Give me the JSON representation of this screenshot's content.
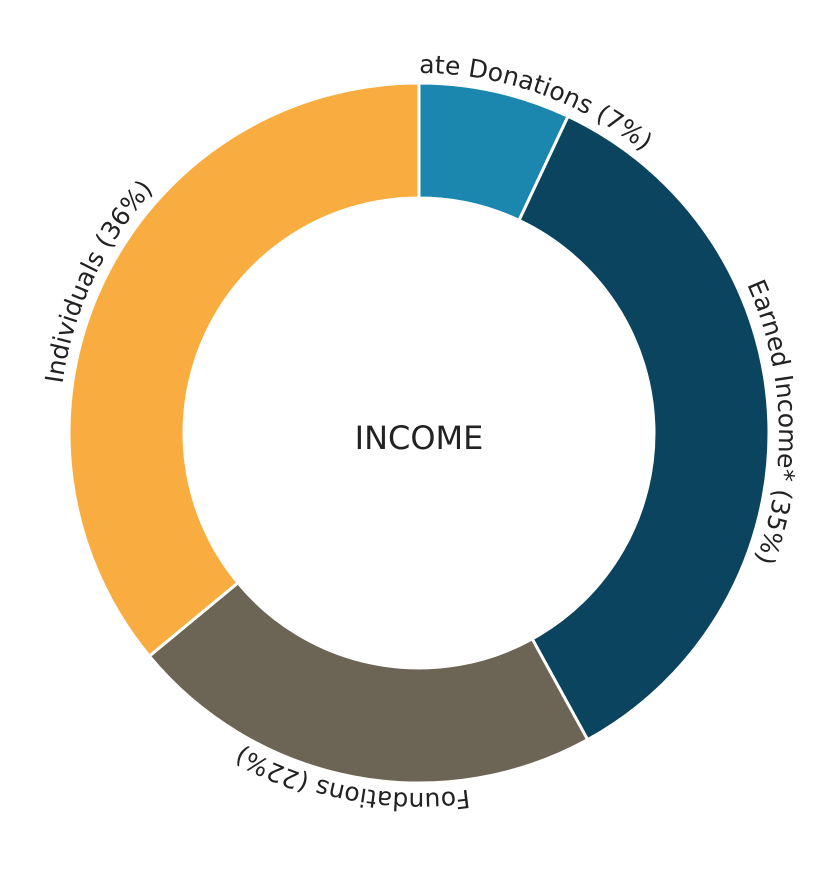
{
  "chart_data": {
    "type": "donut",
    "center_label": "INCOME",
    "categories": [
      "Corporate Donations",
      "Earned Income*",
      "Foundations",
      "Individuals"
    ],
    "values": [
      7,
      35,
      22,
      36
    ],
    "value_labels": [
      "(7%)",
      "(35%)",
      "(22%)",
      "(36%)"
    ],
    "colors": [
      "#1b87ae",
      "#0b445e",
      "#6c6454",
      "#f9ad40"
    ]
  }
}
